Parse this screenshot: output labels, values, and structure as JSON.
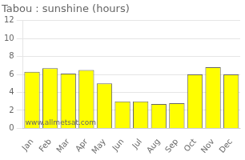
{
  "chart_data": {
    "type": "bar",
    "title": "Tabou : sunshine (hours)",
    "categories": [
      "Jan",
      "Feb",
      "Mar",
      "Apr",
      "May",
      "Jun",
      "Jul",
      "Aug",
      "Sep",
      "Oct",
      "Nov",
      "Dec"
    ],
    "values": [
      6.3,
      6.7,
      6.1,
      6.5,
      5.0,
      3.0,
      3.0,
      2.7,
      2.8,
      6.0,
      6.8,
      6.0
    ],
    "color": "#ffff00",
    "ylim": [
      0,
      12
    ],
    "yticks": [
      0,
      2,
      4,
      6,
      8,
      10,
      12
    ],
    "grid": true,
    "annotations": [
      "www.allmetsat.com"
    ]
  }
}
